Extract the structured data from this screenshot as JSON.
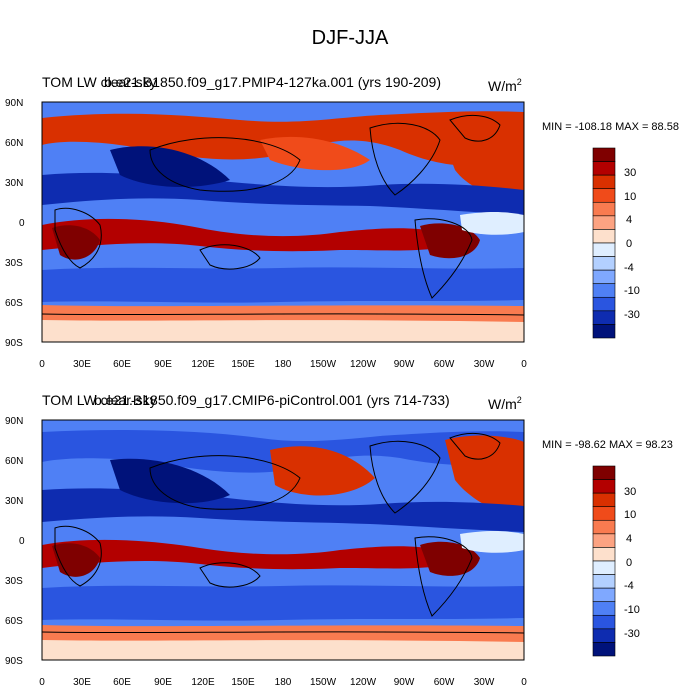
{
  "page_title": "DJF-JJA",
  "panels": [
    {
      "left_title": "TOM LW clear-sky",
      "center_title": "b.e21.B1850.f09_g17.PMIP4-127ka.001 (yrs 190-209)",
      "units": "W/m",
      "units_sup": "2",
      "stats": "MIN = -108.18 MAX =  88.58"
    },
    {
      "left_title": "TOM LW clear-sky",
      "center_title": "b.e21.B1850.f09_g17.CMIP6-piControl.001 (yrs 714-733)",
      "units": "W/m",
      "units_sup": "2",
      "stats": "MIN = -98.62 MAX =  98.23"
    }
  ],
  "lat_labels": [
    "90N",
    "60N",
    "30N",
    "0",
    "30S",
    "60S",
    "90S"
  ],
  "lon_labels": [
    "0",
    "30E",
    "60E",
    "90E",
    "120E",
    "150E",
    "180",
    "150W",
    "120W",
    "90W",
    "60W",
    "30W",
    "0"
  ],
  "colorbar": {
    "colors": [
      "#7f0000",
      "#b30000",
      "#d93000",
      "#f04b1a",
      "#f97b50",
      "#fca382",
      "#fde0cc",
      "#dfeeff",
      "#b3d0ff",
      "#7fa8ff",
      "#4f80f5",
      "#2a55e0",
      "#0e2cb0",
      "#00127a"
    ],
    "tick_labels": [
      "30",
      "10",
      "4",
      "0",
      "-4",
      "-10",
      "-30"
    ]
  },
  "legend_colors": {
    "ocean_background": "#4f80f5",
    "coastline": "#000000"
  }
}
